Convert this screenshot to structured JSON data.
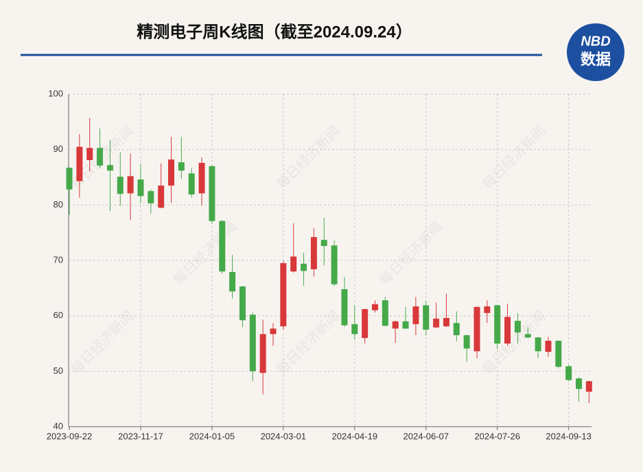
{
  "chart_data": {
    "type": "candlestick",
    "title": "精测电子周K线图（截至2024.09.24）",
    "logo": {
      "top": "NBD",
      "bottom": "数据"
    },
    "watermark": "每日经济新闻",
    "categories": [
      "2023-09-22",
      null,
      null,
      null,
      null,
      null,
      null,
      "2023-11-17",
      null,
      null,
      null,
      null,
      null,
      null,
      "2024-01-05",
      null,
      null,
      null,
      null,
      null,
      null,
      "2024-03-01",
      null,
      null,
      null,
      null,
      null,
      null,
      "2024-04-19",
      null,
      null,
      null,
      null,
      null,
      null,
      "2024-06-07",
      null,
      null,
      null,
      null,
      null,
      null,
      "2024-07-26",
      null,
      null,
      null,
      null,
      null,
      null,
      "2024-09-13",
      null,
      null
    ],
    "open": [
      86.7,
      84.3,
      88.1,
      90.3,
      87.2,
      85.1,
      82.1,
      84.6,
      82.5,
      79.5,
      83.5,
      87.7,
      85.7,
      82.1,
      87.0,
      77.1,
      67.9,
      65.3,
      60.2,
      49.7,
      56.7,
      58.1,
      68.0,
      69.4,
      68.4,
      73.7,
      72.7,
      64.8,
      58.5,
      56.0,
      61.0,
      62.8,
      57.7,
      59.0,
      58.5,
      61.9,
      57.9,
      58.1,
      58.7,
      56.5,
      53.6,
      60.5,
      61.9,
      55.0,
      59.1,
      56.7,
      56.1,
      53.5,
      55.5,
      50.9,
      48.7,
      46.3
    ],
    "high": [
      86.8,
      92.8,
      95.7,
      93.8,
      91.7,
      89.5,
      89.3,
      87.4,
      82.8,
      87.5,
      92.3,
      92.3,
      86.6,
      88.6,
      87.2,
      77.3,
      71.0,
      65.4,
      60.6,
      59.3,
      58.7,
      69.9,
      76.7,
      71.4,
      75.8,
      77.7,
      73.6,
      67.0,
      61.9,
      61.3,
      62.8,
      63.4,
      59.1,
      61.6,
      63.4,
      62.7,
      62.4,
      64.0,
      60.8,
      56.6,
      61.7,
      62.8,
      62.0,
      62.2,
      60.5,
      57.9,
      56.2,
      56.2,
      55.6,
      51.2,
      48.9,
      48.3
    ],
    "low": [
      78.2,
      81.3,
      86.0,
      86.6,
      78.9,
      79.8,
      77.3,
      80.3,
      78.4,
      79.4,
      80.4,
      84.7,
      81.4,
      79.9,
      76.6,
      67.6,
      63.1,
      58.0,
      48.2,
      45.8,
      54.6,
      57.5,
      67.8,
      65.4,
      67.1,
      69.1,
      65.4,
      58.0,
      55.7,
      55.0,
      60.6,
      58.1,
      55.1,
      57.6,
      56.5,
      56.5,
      57.8,
      58.0,
      55.4,
      51.7,
      52.3,
      58.7,
      54.0,
      54.6,
      55.0,
      55.9,
      52.4,
      52.6,
      50.5,
      48.2,
      44.5,
      44.2
    ],
    "close": [
      82.8,
      90.5,
      90.3,
      87.1,
      86.2,
      82.0,
      85.2,
      81.6,
      80.3,
      83.5,
      88.2,
      86.2,
      81.9,
      87.6,
      77.1,
      68.0,
      64.4,
      59.2,
      50.0,
      56.7,
      57.7,
      69.5,
      70.7,
      68.1,
      74.2,
      72.6,
      65.7,
      58.3,
      56.7,
      61.2,
      62.1,
      58.2,
      59.0,
      57.7,
      61.7,
      57.5,
      59.5,
      59.6,
      56.5,
      54.1,
      61.6,
      61.7,
      55.0,
      59.8,
      57.0,
      56.1,
      53.6,
      55.5,
      50.8,
      48.4,
      46.8,
      48.2
    ],
    "up_color": "#d9383a",
    "down_color": "#45a94a",
    "ylim": [
      40,
      100
    ],
    "yticks": [
      40,
      50,
      60,
      70,
      80,
      90,
      100
    ],
    "grid": true
  }
}
